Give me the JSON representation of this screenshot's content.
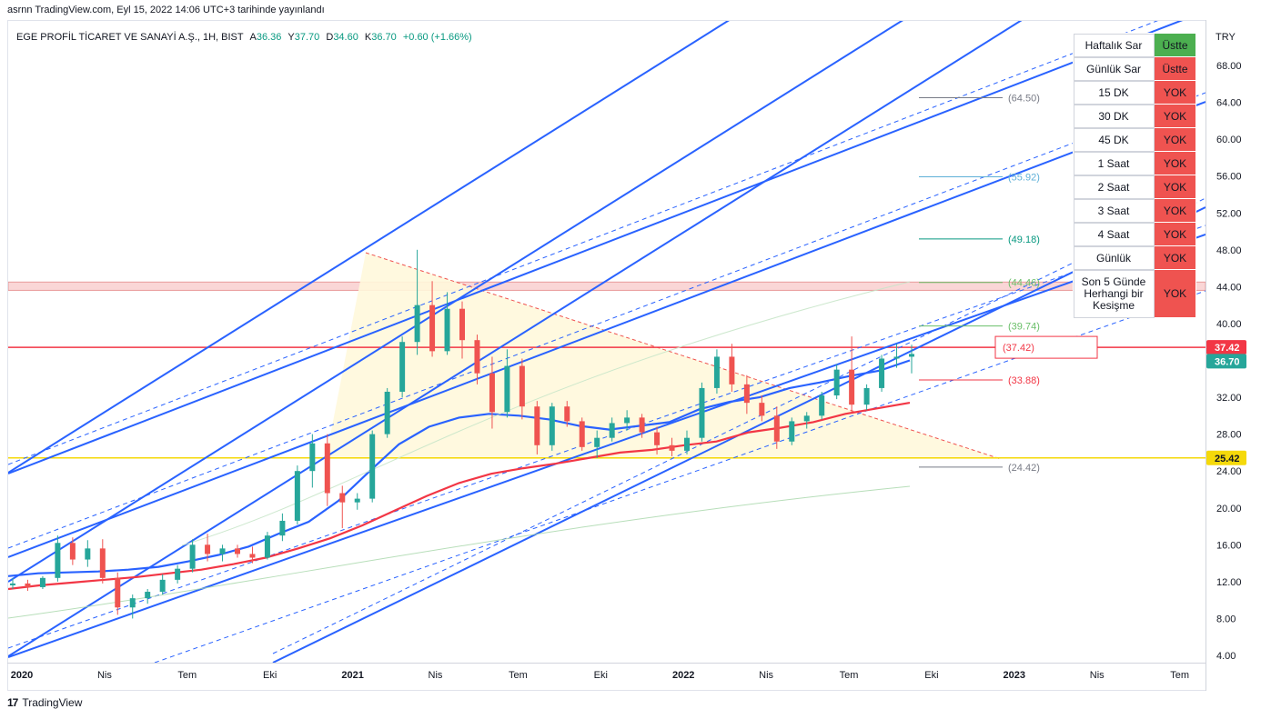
{
  "header": {
    "published": "asrnn TradingView.com, Eyl 15, 2022 14:06 UTC+3 tarihinde yayınlandı",
    "symbol": "EGE PROFİL TİCARET VE SANAYİ A.Ş., 1H, BIST",
    "ohlc": {
      "open_label": "A",
      "open": "36.36",
      "high_label": "Y",
      "high": "37.70",
      "low_label": "D",
      "low": "34.60",
      "close_label": "K",
      "close": "36.70",
      "change": "+0.60 (+1.66%)"
    }
  },
  "footer": {
    "logo": "17",
    "brand": "TradingView"
  },
  "colors": {
    "up": "#26a69a",
    "down": "#ef5350",
    "channel": "#2962ff",
    "ma_blue": "#2962ff",
    "ma_red": "#f23645",
    "yellow": "#f5d90a",
    "red_line": "#f23645",
    "triangle_fill": "#fff8dc",
    "zone": "#f8c8c8"
  },
  "signal_table": {
    "rows": [
      {
        "label": "Haftalık Sar",
        "value": "Üstte",
        "color": "#4caf50"
      },
      {
        "label": "Günlük Sar",
        "value": "Üstte",
        "color": "#ef5350"
      },
      {
        "label": "15 DK",
        "value": "YOK",
        "color": "#ef5350"
      },
      {
        "label": "30 DK",
        "value": "YOK",
        "color": "#ef5350"
      },
      {
        "label": "45 DK",
        "value": "YOK",
        "color": "#ef5350"
      },
      {
        "label": "1 Saat",
        "value": "YOK",
        "color": "#ef5350"
      },
      {
        "label": "2 Saat",
        "value": "YOK",
        "color": "#ef5350"
      },
      {
        "label": "3 Saat",
        "value": "YOK",
        "color": "#ef5350"
      },
      {
        "label": "4 Saat",
        "value": "YOK",
        "color": "#ef5350"
      },
      {
        "label": "Günlük",
        "value": "YOK",
        "color": "#ef5350"
      },
      {
        "label": "Son 5 Günde Herhangi bir Kesişme",
        "value": "YOK",
        "color": "#ef5350"
      }
    ]
  },
  "chart_data": {
    "type": "candlestick",
    "currency": "TRY",
    "y_ticks": [
      "68.00",
      "64.00",
      "60.00",
      "56.00",
      "52.00",
      "48.00",
      "44.00",
      "40.00",
      "36.00",
      "32.00",
      "28.00",
      "24.00",
      "20.00",
      "16.00",
      "12.00",
      "8.00",
      "4.00"
    ],
    "ylim": [
      4,
      70
    ],
    "x_ticks": [
      {
        "label": "2020",
        "t": 0
      },
      {
        "label": "Nis",
        "t": 3
      },
      {
        "label": "Tem",
        "t": 6
      },
      {
        "label": "Eki",
        "t": 9
      },
      {
        "label": "2021",
        "t": 12
      },
      {
        "label": "Nis",
        "t": 15
      },
      {
        "label": "Tem",
        "t": 18
      },
      {
        "label": "Eki",
        "t": 21
      },
      {
        "label": "2022",
        "t": 24
      },
      {
        "label": "Nis",
        "t": 27
      },
      {
        "label": "Tem",
        "t": 30
      },
      {
        "label": "Eki",
        "t": 33
      },
      {
        "label": "2023",
        "t": 36
      },
      {
        "label": "Nis",
        "t": 39
      },
      {
        "label": "Tem",
        "t": 42
      }
    ],
    "price_badges": [
      {
        "value": "37.42",
        "color": "#f23645"
      },
      {
        "value": "36.70",
        "color": "#26a69a"
      },
      {
        "value": "25.42",
        "color": "#f5d90a"
      }
    ],
    "levels": [
      {
        "label": "(64.50)",
        "value": 64.5,
        "color": "#787b86"
      },
      {
        "label": "(55.92)",
        "value": 55.92,
        "color": "#5fb0d8"
      },
      {
        "label": "(49.18)",
        "value": 49.18,
        "color": "#089981"
      },
      {
        "label": "(44.46)",
        "value": 44.46,
        "color": "#6abf69"
      },
      {
        "label": "(39.74)",
        "value": 39.74,
        "color": "#6abf69"
      },
      {
        "label": "(37.42)",
        "value": 37.42,
        "color": "#f23645",
        "boxed": true
      },
      {
        "label": "(33.88)",
        "value": 33.88,
        "color": "#f23645"
      },
      {
        "label": "(24.42)",
        "value": 24.42,
        "color": "#787b86"
      }
    ],
    "zone": [
      43.6,
      44.5
    ],
    "horizontal_lines": [
      {
        "value": 37.42,
        "color": "#f23645"
      },
      {
        "value": 25.42,
        "color": "#f5d90a"
      }
    ],
    "candles": [
      [
        11.6,
        12.4,
        11.2,
        11.8
      ],
      [
        11.8,
        12.2,
        11.0,
        11.4
      ],
      [
        11.4,
        12.6,
        11.2,
        12.4
      ],
      [
        12.4,
        17.0,
        12.0,
        16.2
      ],
      [
        16.2,
        16.8,
        13.8,
        14.4
      ],
      [
        14.4,
        16.5,
        13.6,
        15.6
      ],
      [
        15.6,
        16.6,
        11.8,
        12.4
      ],
      [
        12.4,
        13.0,
        8.4,
        9.2
      ],
      [
        9.2,
        10.6,
        8.0,
        10.2
      ],
      [
        10.2,
        11.2,
        9.6,
        10.9
      ],
      [
        10.9,
        12.8,
        10.6,
        12.2
      ],
      [
        12.2,
        13.8,
        11.8,
        13.4
      ],
      [
        13.4,
        16.6,
        13.0,
        16.0
      ],
      [
        16.0,
        17.2,
        14.2,
        15.0
      ],
      [
        15.0,
        16.0,
        14.2,
        15.6
      ],
      [
        15.6,
        16.0,
        14.6,
        15.0
      ],
      [
        15.0,
        15.8,
        14.0,
        14.6
      ],
      [
        14.6,
        17.4,
        14.4,
        17.0
      ],
      [
        17.0,
        19.4,
        16.4,
        18.6
      ],
      [
        18.6,
        24.6,
        18.2,
        24.0
      ],
      [
        24.0,
        28.0,
        22.2,
        27.0
      ],
      [
        27.0,
        28.0,
        20.2,
        21.6
      ],
      [
        21.6,
        22.4,
        17.8,
        20.6
      ],
      [
        20.6,
        21.6,
        19.8,
        21.0
      ],
      [
        21.0,
        28.4,
        20.6,
        28.0
      ],
      [
        28.0,
        33.0,
        27.6,
        32.6
      ],
      [
        32.6,
        38.6,
        32.0,
        38.0
      ],
      [
        38.0,
        48.0,
        36.6,
        42.0
      ],
      [
        42.0,
        44.6,
        36.4,
        37.0
      ],
      [
        37.0,
        43.4,
        36.6,
        41.6
      ],
      [
        41.6,
        42.4,
        36.2,
        38.2
      ],
      [
        38.2,
        38.8,
        33.4,
        34.6
      ],
      [
        34.6,
        36.4,
        28.6,
        30.4
      ],
      [
        30.4,
        37.2,
        29.8,
        35.4
      ],
      [
        35.4,
        36.2,
        29.6,
        31.0
      ],
      [
        31.0,
        31.6,
        25.8,
        26.8
      ],
      [
        26.8,
        31.4,
        26.2,
        31.0
      ],
      [
        31.0,
        31.6,
        28.8,
        29.4
      ],
      [
        29.4,
        29.8,
        26.2,
        26.6
      ],
      [
        26.6,
        28.4,
        25.4,
        27.6
      ],
      [
        27.6,
        29.8,
        27.2,
        29.2
      ],
      [
        29.2,
        30.6,
        28.4,
        29.8
      ],
      [
        29.8,
        30.2,
        27.6,
        28.2
      ],
      [
        28.2,
        28.8,
        25.8,
        26.8
      ],
      [
        26.8,
        27.6,
        25.6,
        26.2
      ],
      [
        26.2,
        28.4,
        25.8,
        27.6
      ],
      [
        27.6,
        33.6,
        27.2,
        33.0
      ],
      [
        33.0,
        37.2,
        32.4,
        36.4
      ],
      [
        36.4,
        37.8,
        32.6,
        33.4
      ],
      [
        33.4,
        34.4,
        30.2,
        31.4
      ],
      [
        31.4,
        32.2,
        29.4,
        30.0
      ],
      [
        30.0,
        31.0,
        26.4,
        27.2
      ],
      [
        27.2,
        29.8,
        26.8,
        29.4
      ],
      [
        29.4,
        30.4,
        28.6,
        30.0
      ],
      [
        30.0,
        32.6,
        29.6,
        32.2
      ],
      [
        32.2,
        35.6,
        31.8,
        35.0
      ],
      [
        35.0,
        38.6,
        30.4,
        31.2
      ],
      [
        31.2,
        33.4,
        30.6,
        33.0
      ],
      [
        33.0,
        36.6,
        32.6,
        36.2
      ],
      [
        36.2,
        37.8,
        35.2,
        36.4
      ],
      [
        36.4,
        37.7,
        34.6,
        36.7
      ]
    ],
    "moving_averages": [
      {
        "name": "",
        "color": "#2962ff",
        "values": [
          12.6,
          12.9,
          13.0,
          13.1,
          13.3,
          13.6,
          14.2,
          14.9,
          15.8,
          17.2,
          18.5,
          20.8,
          23.9,
          26.9,
          28.8,
          29.8,
          30.2,
          30.0,
          29.6,
          28.9,
          28.5,
          28.9,
          29.3,
          30.7,
          31.5,
          32.0,
          33.0,
          33.6,
          34.3,
          34.9,
          36.0
        ]
      },
      {
        "name": "",
        "color": "#f23645",
        "values": [
          11.2,
          11.6,
          11.9,
          12.2,
          12.5,
          12.9,
          13.3,
          13.9,
          14.6,
          15.6,
          16.7,
          18.1,
          19.7,
          21.3,
          22.7,
          23.7,
          24.3,
          24.8,
          25.4,
          26.0,
          26.3,
          26.8,
          27.2,
          28.2,
          28.7,
          29.3,
          30.2,
          30.8,
          31.4
        ]
      }
    ]
  }
}
